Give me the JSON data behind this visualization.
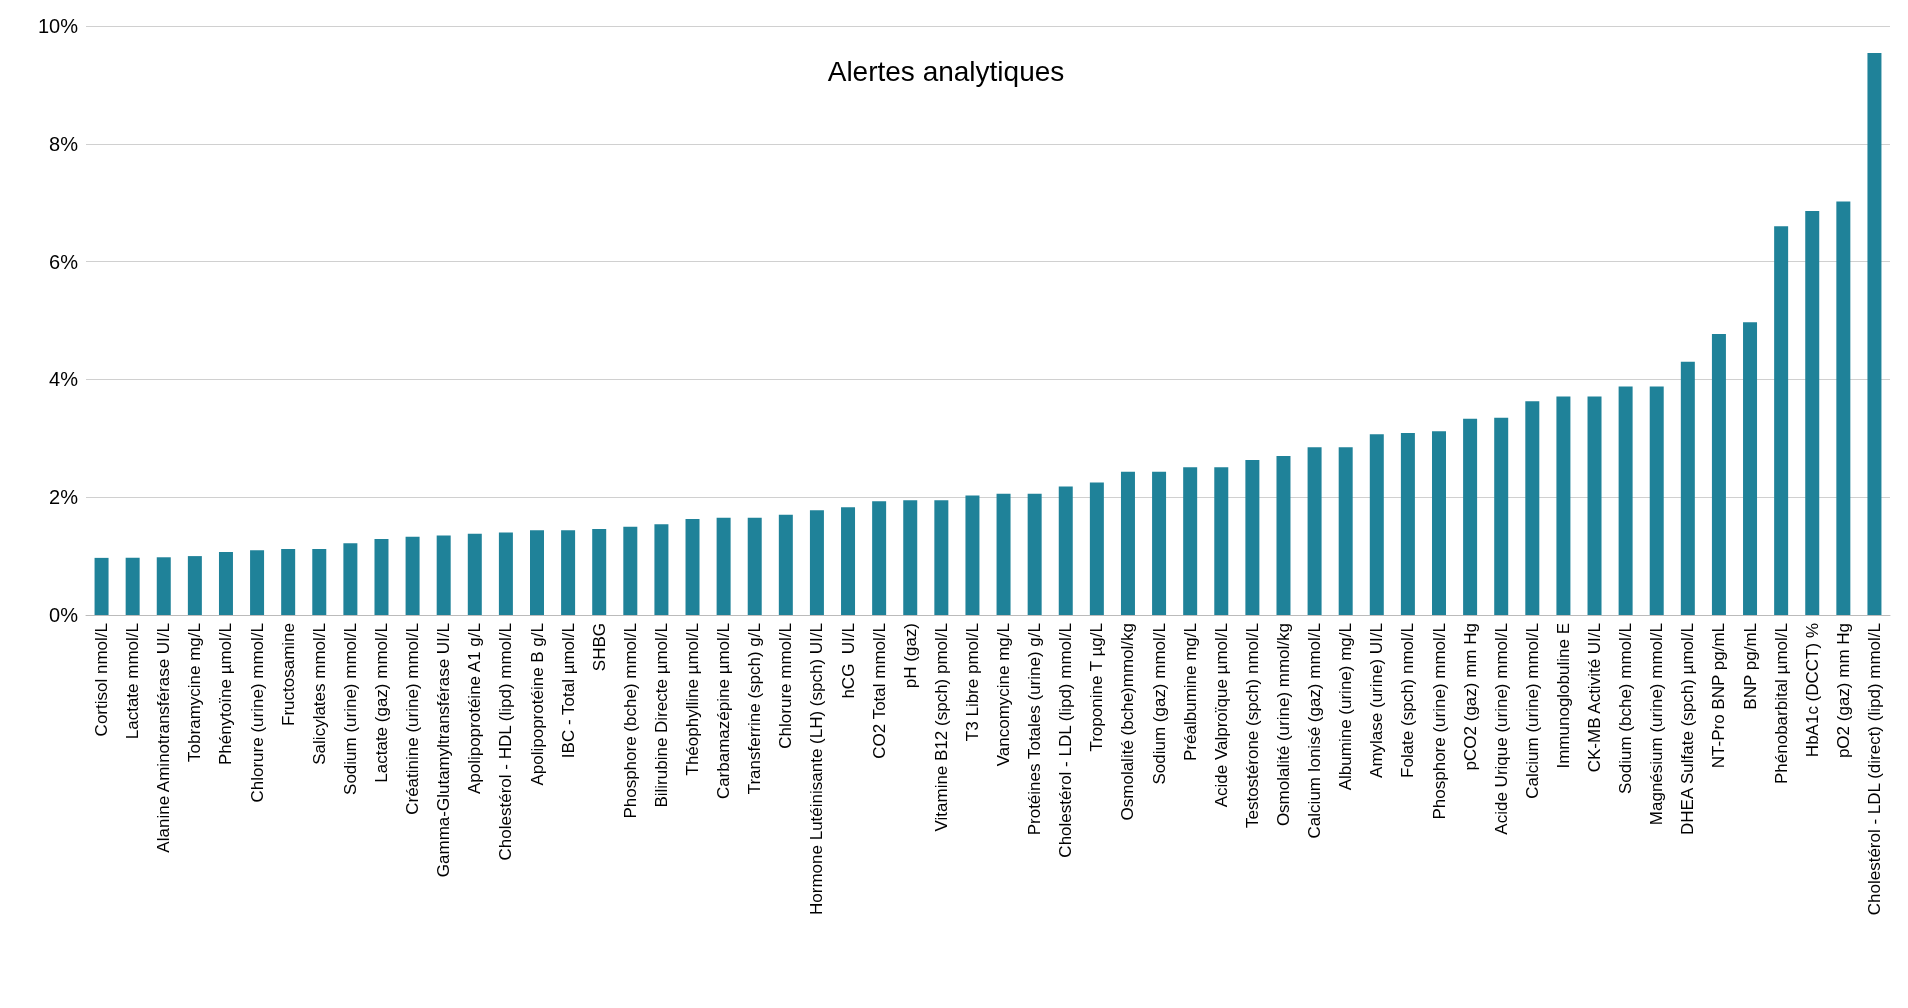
{
  "chart_data": {
    "type": "bar",
    "title": "Alertes analytiques",
    "categories": [
      "Cortisol nmol/L",
      "Lactate mmol/L",
      "Alanine Aminotransférase UI/L",
      "Tobramycine mg/L",
      "Phénytoïne µmol/L",
      "Chlorure (urine) mmol/L",
      "Fructosamine",
      "Salicylates mmol/L",
      "Sodium (urine) mmol/L",
      "Lactate (gaz) mmol/L",
      "Créatinine (urine) mmol/L",
      "Gamma-Glutamyltransférase UI/L",
      "Apolipoprotéine A1 g/L",
      "Cholestérol - HDL (lipd) mmol/L",
      "Apolipoprotéine B g/L",
      "IBC - Total µmol/L",
      "SHBG",
      "Phosphore (bche) mmol/L",
      "Bilirubine Directe µmol/L",
      "Théophylline µmol/L",
      "Carbamazépine µmol/L",
      "Transferrine (spch) g/L",
      "Chlorure mmol/L",
      "Hormone Lutéinisante (LH) (spch) UI/L",
      "hCG  UI/L",
      "CO2 Total mmol/L",
      "pH (gaz)",
      "Vitamine B12 (spch) pmol/L",
      "T3 Libre pmol/L",
      "Vancomycine mg/L",
      "Protéines Totales (urine) g/L",
      "Cholestérol - LDL (lipd) mmol/L",
      "Troponine T µg/L",
      "Osmolalité (bche)mmol/kg",
      "Sodium (gaz) mmol/L",
      "Préalbumine mg/L",
      "Acide Valproïque µmol/L",
      "Testostérone (spch) nmol/L",
      "Osmolalité (urine) mmol/kg",
      "Calcium Ionisé (gaz) mmol/L",
      "Albumine (urine) mg/L",
      "Amylase (urine) UI/L",
      "Folate (spch) nmol/L",
      "Phosphore (urine) mmol/L",
      "pCO2 (gaz) mm Hg",
      "Acide Urique (urine) mmol/L",
      "Calcium (urine) mmol/L",
      "Immunoglobuline E",
      "CK-MB Activité UI/L",
      "Sodium (bche) mmol/L",
      "Magnésium (urine) mmol/L",
      "DHEA Sulfate (spch) µmol/L",
      "NT-Pro BNP pg/mL",
      "BNP pg/mL",
      "Phénobarbital µmol/L",
      "HbA1c (DCCT) %",
      "pO2 (gaz) mm Hg",
      "Cholestérol - LDL (direct) (lipd) mmol/L"
    ],
    "values": [
      0.97,
      0.97,
      0.98,
      1.0,
      1.07,
      1.1,
      1.12,
      1.12,
      1.22,
      1.29,
      1.33,
      1.35,
      1.38,
      1.4,
      1.44,
      1.44,
      1.46,
      1.5,
      1.54,
      1.63,
      1.65,
      1.65,
      1.7,
      1.78,
      1.83,
      1.93,
      1.95,
      1.95,
      2.03,
      2.06,
      2.06,
      2.18,
      2.25,
      2.43,
      2.43,
      2.51,
      2.51,
      2.63,
      2.7,
      2.85,
      2.85,
      3.07,
      3.09,
      3.12,
      3.33,
      3.35,
      3.63,
      3.71,
      3.71,
      3.88,
      3.88,
      4.3,
      4.77,
      4.97,
      6.6,
      6.86,
      7.02,
      9.54
    ],
    "color": "#1f8299",
    "ylim": [
      0,
      10
    ],
    "yticks": [
      {
        "value": 0,
        "label": "0%"
      },
      {
        "value": 2,
        "label": "2%"
      },
      {
        "value": 4,
        "label": "4%"
      },
      {
        "value": 6,
        "label": "6%"
      },
      {
        "value": 8,
        "label": "8%"
      },
      {
        "value": 10,
        "label": "10%"
      }
    ],
    "grid": "y"
  }
}
